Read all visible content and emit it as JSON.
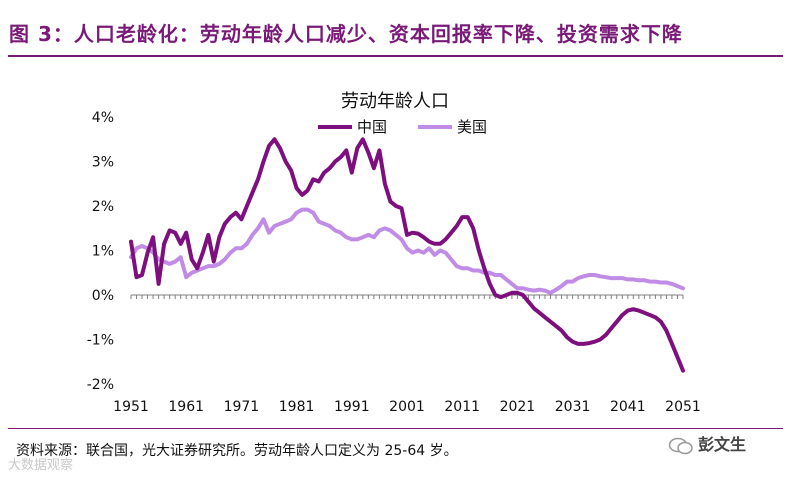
{
  "figure_title": "图 3：人口老龄化：劳动年龄人口减少、资本回报率下降、投资需求下降",
  "source_note": "资料来源：联合国，光大证券研究所。劳动年龄人口定义为 25-64 岁。",
  "watermarks": {
    "left": "大数据观察",
    "right": "彭文生"
  },
  "colors": {
    "accent": "#7a1a78",
    "china": "#7d0f7e",
    "us": "#c08ce6",
    "axis": "#7f7f7f"
  },
  "chart_data": {
    "type": "line",
    "title": "劳动年龄人口",
    "xlabel": "",
    "ylabel": "",
    "xlim": [
      1951,
      2051
    ],
    "ylim": [
      -2,
      4
    ],
    "y_ticks": [
      -2,
      -1,
      0,
      1,
      2,
      3,
      4
    ],
    "y_tick_labels": [
      "-2%",
      "-1%",
      "0%",
      "1%",
      "2%",
      "3%",
      "4%"
    ],
    "x_ticks": [
      1951,
      1961,
      1971,
      1981,
      1991,
      2001,
      2011,
      2021,
      2031,
      2041,
      2051
    ],
    "x_tick_labels": [
      "1951",
      "1961",
      "1971",
      "1981",
      "1991",
      "2001",
      "2011",
      "2021",
      "2031",
      "2041",
      "2051"
    ],
    "legend_position": "top-center",
    "series": [
      {
        "name": "中国",
        "points": [
          [
            1951,
            1.2
          ],
          [
            1952,
            0.4
          ],
          [
            1953,
            0.45
          ],
          [
            1954,
            0.95
          ],
          [
            1955,
            1.3
          ],
          [
            1956,
            0.25
          ],
          [
            1957,
            1.15
          ],
          [
            1958,
            1.45
          ],
          [
            1959,
            1.4
          ],
          [
            1960,
            1.15
          ],
          [
            1961,
            1.4
          ],
          [
            1962,
            0.8
          ],
          [
            1963,
            0.6
          ],
          [
            1964,
            0.95
          ],
          [
            1965,
            1.35
          ],
          [
            1966,
            0.75
          ],
          [
            1967,
            1.3
          ],
          [
            1968,
            1.6
          ],
          [
            1969,
            1.75
          ],
          [
            1970,
            1.85
          ],
          [
            1971,
            1.7
          ],
          [
            1972,
            2.0
          ],
          [
            1973,
            2.3
          ],
          [
            1974,
            2.6
          ],
          [
            1975,
            3.0
          ],
          [
            1976,
            3.35
          ],
          [
            1977,
            3.5
          ],
          [
            1978,
            3.3
          ],
          [
            1979,
            3.0
          ],
          [
            1980,
            2.8
          ],
          [
            1981,
            2.4
          ],
          [
            1982,
            2.25
          ],
          [
            1983,
            2.35
          ],
          [
            1984,
            2.6
          ],
          [
            1985,
            2.55
          ],
          [
            1986,
            2.75
          ],
          [
            1987,
            2.85
          ],
          [
            1988,
            3.0
          ],
          [
            1989,
            3.1
          ],
          [
            1990,
            3.25
          ],
          [
            1991,
            2.75
          ],
          [
            1992,
            3.3
          ],
          [
            1993,
            3.5
          ],
          [
            1994,
            3.2
          ],
          [
            1995,
            2.85
          ],
          [
            1996,
            3.25
          ],
          [
            1997,
            2.5
          ],
          [
            1998,
            2.1
          ],
          [
            1999,
            2.0
          ],
          [
            2000,
            1.95
          ],
          [
            2001,
            1.35
          ],
          [
            2002,
            1.4
          ],
          [
            2003,
            1.38
          ],
          [
            2004,
            1.3
          ],
          [
            2005,
            1.2
          ],
          [
            2006,
            1.15
          ],
          [
            2007,
            1.15
          ],
          [
            2008,
            1.25
          ],
          [
            2009,
            1.4
          ],
          [
            2010,
            1.55
          ],
          [
            2011,
            1.75
          ],
          [
            2012,
            1.75
          ],
          [
            2013,
            1.5
          ],
          [
            2014,
            1.0
          ],
          [
            2015,
            0.6
          ],
          [
            2016,
            0.25
          ],
          [
            2017,
            0.0
          ],
          [
            2018,
            -0.05
          ],
          [
            2019,
            0.0
          ],
          [
            2020,
            0.05
          ],
          [
            2021,
            0.05
          ],
          [
            2022,
            0.0
          ],
          [
            2023,
            -0.15
          ],
          [
            2024,
            -0.3
          ],
          [
            2025,
            -0.4
          ],
          [
            2026,
            -0.5
          ],
          [
            2027,
            -0.6
          ],
          [
            2028,
            -0.7
          ],
          [
            2029,
            -0.8
          ],
          [
            2030,
            -0.95
          ],
          [
            2031,
            -1.05
          ],
          [
            2032,
            -1.1
          ],
          [
            2033,
            -1.1
          ],
          [
            2034,
            -1.08
          ],
          [
            2035,
            -1.05
          ],
          [
            2036,
            -1.0
          ],
          [
            2037,
            -0.9
          ],
          [
            2038,
            -0.75
          ],
          [
            2039,
            -0.6
          ],
          [
            2040,
            -0.45
          ],
          [
            2041,
            -0.35
          ],
          [
            2042,
            -0.32
          ],
          [
            2043,
            -0.35
          ],
          [
            2044,
            -0.4
          ],
          [
            2045,
            -0.45
          ],
          [
            2046,
            -0.5
          ],
          [
            2047,
            -0.6
          ],
          [
            2048,
            -0.8
          ],
          [
            2049,
            -1.1
          ],
          [
            2050,
            -1.4
          ],
          [
            2051,
            -1.7
          ]
        ]
      },
      {
        "name": "美国",
        "points": [
          [
            1951,
            0.85
          ],
          [
            1952,
            1.05
          ],
          [
            1953,
            1.1
          ],
          [
            1954,
            1.05
          ],
          [
            1955,
            0.95
          ],
          [
            1956,
            0.8
          ],
          [
            1957,
            0.75
          ],
          [
            1958,
            0.7
          ],
          [
            1959,
            0.75
          ],
          [
            1960,
            0.85
          ],
          [
            1961,
            0.4
          ],
          [
            1962,
            0.5
          ],
          [
            1963,
            0.55
          ],
          [
            1964,
            0.6
          ],
          [
            1965,
            0.65
          ],
          [
            1966,
            0.65
          ],
          [
            1967,
            0.7
          ],
          [
            1968,
            0.8
          ],
          [
            1969,
            0.95
          ],
          [
            1970,
            1.05
          ],
          [
            1971,
            1.05
          ],
          [
            1972,
            1.15
          ],
          [
            1973,
            1.35
          ],
          [
            1974,
            1.5
          ],
          [
            1975,
            1.7
          ],
          [
            1976,
            1.4
          ],
          [
            1977,
            1.55
          ],
          [
            1978,
            1.6
          ],
          [
            1979,
            1.65
          ],
          [
            1980,
            1.7
          ],
          [
            1981,
            1.85
          ],
          [
            1982,
            1.92
          ],
          [
            1983,
            1.92
          ],
          [
            1984,
            1.85
          ],
          [
            1985,
            1.65
          ],
          [
            1986,
            1.6
          ],
          [
            1987,
            1.55
          ],
          [
            1988,
            1.45
          ],
          [
            1989,
            1.4
          ],
          [
            1990,
            1.3
          ],
          [
            1991,
            1.25
          ],
          [
            1992,
            1.25
          ],
          [
            1993,
            1.3
          ],
          [
            1994,
            1.35
          ],
          [
            1995,
            1.3
          ],
          [
            1996,
            1.45
          ],
          [
            1997,
            1.5
          ],
          [
            1998,
            1.45
          ],
          [
            1999,
            1.35
          ],
          [
            2000,
            1.25
          ],
          [
            2001,
            1.05
          ],
          [
            2002,
            0.95
          ],
          [
            2003,
            1.0
          ],
          [
            2004,
            0.95
          ],
          [
            2005,
            1.05
          ],
          [
            2006,
            0.9
          ],
          [
            2007,
            1.0
          ],
          [
            2008,
            0.95
          ],
          [
            2009,
            0.8
          ],
          [
            2010,
            0.65
          ],
          [
            2011,
            0.6
          ],
          [
            2012,
            0.6
          ],
          [
            2013,
            0.55
          ],
          [
            2014,
            0.55
          ],
          [
            2015,
            0.5
          ],
          [
            2016,
            0.5
          ],
          [
            2017,
            0.45
          ],
          [
            2018,
            0.45
          ],
          [
            2019,
            0.35
          ],
          [
            2020,
            0.25
          ],
          [
            2021,
            0.15
          ],
          [
            2022,
            0.15
          ],
          [
            2023,
            0.12
          ],
          [
            2024,
            0.1
          ],
          [
            2025,
            0.12
          ],
          [
            2026,
            0.1
          ],
          [
            2027,
            0.05
          ],
          [
            2028,
            0.12
          ],
          [
            2029,
            0.2
          ],
          [
            2030,
            0.3
          ],
          [
            2031,
            0.3
          ],
          [
            2032,
            0.38
          ],
          [
            2033,
            0.42
          ],
          [
            2034,
            0.45
          ],
          [
            2035,
            0.45
          ],
          [
            2036,
            0.42
          ],
          [
            2037,
            0.4
          ],
          [
            2038,
            0.38
          ],
          [
            2039,
            0.38
          ],
          [
            2040,
            0.38
          ],
          [
            2041,
            0.35
          ],
          [
            2042,
            0.35
          ],
          [
            2043,
            0.33
          ],
          [
            2044,
            0.33
          ],
          [
            2045,
            0.3
          ],
          [
            2046,
            0.3
          ],
          [
            2047,
            0.28
          ],
          [
            2048,
            0.28
          ],
          [
            2049,
            0.25
          ],
          [
            2050,
            0.2
          ],
          [
            2051,
            0.15
          ]
        ]
      }
    ]
  }
}
